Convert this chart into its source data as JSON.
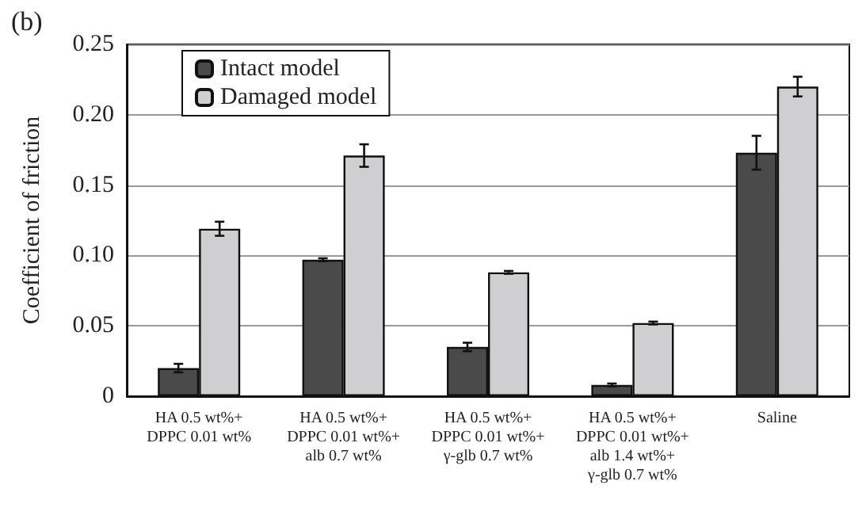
{
  "chart_data": {
    "type": "bar",
    "title": "(b)",
    "ylabel": "Coefficient of friction",
    "categories": [
      "HA 0.5 wt%+\nDPPC 0.01 wt%",
      "HA 0.5 wt%+\nDPPC 0.01 wt%+\nalb 0.7 wt%",
      "HA 0.5 wt%+\nDPPC 0.01 wt%+\nγ-glb 0.7 wt%",
      "HA 0.5 wt%+\nDPPC 0.01 wt%+\nalb 1.4 wt%+\nγ-glb 0.7 wt%",
      "Saline"
    ],
    "series": [
      {
        "name": "Intact model",
        "color": "#4a4a4a",
        "values": [
          0.02,
          0.097,
          0.035,
          0.008,
          0.173
        ],
        "errors": [
          0.003,
          0.001,
          0.003,
          0.001,
          0.012
        ]
      },
      {
        "name": "Damaged model",
        "color": "#cfcfd1",
        "values": [
          0.119,
          0.171,
          0.088,
          0.052,
          0.22
        ],
        "errors": [
          0.005,
          0.008,
          0.001,
          0.001,
          0.007
        ]
      }
    ],
    "ylim": [
      0,
      0.25
    ],
    "yticks": [
      0,
      0.05,
      {
        "value": 0.1,
        "label": "0.10"
      },
      0.15,
      {
        "value": 0.2,
        "label": "0.20"
      },
      0.25
    ],
    "grid": "y",
    "legend": "top left"
  }
}
